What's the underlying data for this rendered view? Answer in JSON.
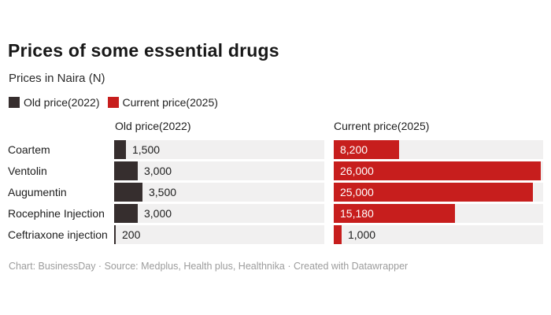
{
  "header": {
    "title": "Prices of some essential drugs",
    "subtitle": "Prices in Naira (N)"
  },
  "legend": {
    "items": [
      {
        "label": "Old price(2022)",
        "color": "#362e2e"
      },
      {
        "label": "Current price(2025)",
        "color": "#c71e1d"
      }
    ]
  },
  "chart_data": {
    "type": "bar",
    "orientation": "horizontal",
    "layout": "split-columns",
    "title": "Prices of some essential drugs",
    "subtitle": "Prices in Naira (N)",
    "column_headers": [
      "Old price(2022)",
      "Current price(2025)"
    ],
    "categories": [
      "Coartem",
      "Ventolin",
      "Augumentin",
      "Rocephine Injection",
      "Ceftriaxone injection"
    ],
    "series": [
      {
        "name": "Old price(2022)",
        "color": "#362e2e",
        "values": [
          1500,
          3000,
          3500,
          3000,
          200
        ],
        "labels": [
          "1,500",
          "3,000",
          "3,500",
          "3,000",
          "200"
        ]
      },
      {
        "name": "Current price(2025)",
        "color": "#c71e1d",
        "values": [
          8200,
          26000,
          25000,
          15180,
          1000
        ],
        "labels": [
          "8,200",
          "26,000",
          "25,000",
          "15,180",
          "1,000"
        ]
      }
    ],
    "xlim": [
      0,
      26300
    ],
    "grid": false,
    "legend_position": "top",
    "track_color": "#f1f0f0",
    "inside_label_color": "#ffffff"
  },
  "footer": {
    "text": "Chart: BusinessDay · Source: Medplus, Health plus, Healthnika · Created with Datawrapper"
  }
}
